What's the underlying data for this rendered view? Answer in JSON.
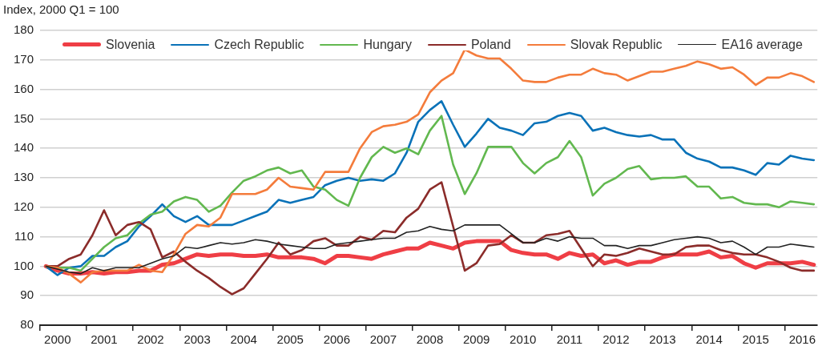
{
  "chart_data": {
    "type": "line",
    "ylabel": "Index, 2000 Q1 = 100",
    "x": [
      2000.125,
      2000.375,
      2000.625,
      2000.875,
      2001.125,
      2001.375,
      2001.625,
      2001.875,
      2002.125,
      2002.375,
      2002.625,
      2002.875,
      2003.125,
      2003.375,
      2003.625,
      2003.875,
      2004.125,
      2004.375,
      2004.625,
      2004.875,
      2005.125,
      2005.375,
      2005.625,
      2005.875,
      2006.125,
      2006.375,
      2006.625,
      2006.875,
      2007.125,
      2007.375,
      2007.625,
      2007.875,
      2008.125,
      2008.375,
      2008.625,
      2008.875,
      2009.125,
      2009.375,
      2009.625,
      2009.875,
      2010.125,
      2010.375,
      2010.625,
      2010.875,
      2011.125,
      2011.375,
      2011.625,
      2011.875,
      2012.125,
      2012.375,
      2012.625,
      2012.875,
      2013.125,
      2013.375,
      2013.625,
      2013.875,
      2014.125,
      2014.375,
      2014.625,
      2014.875,
      2015.125,
      2015.375,
      2015.625,
      2015.875,
      2016.125,
      2016.375,
      2016.625
    ],
    "series": [
      {
        "name": "Slovenia",
        "color": "#ef3e45",
        "values": [
          100,
          98.5,
          97.5,
          97.5,
          98,
          97.5,
          98,
          98,
          98.5,
          98.5,
          100.5,
          101,
          102.5,
          104,
          103.5,
          104,
          104,
          103.5,
          103.5,
          104,
          103,
          103,
          103,
          102.5,
          101,
          103.5,
          103.5,
          103,
          102.5,
          104,
          105,
          106,
          106,
          108,
          107,
          106,
          108,
          108.5,
          108.5,
          108.5,
          105.5,
          104.5,
          104,
          104,
          102.5,
          104.5,
          103.5,
          104,
          101,
          102,
          100.5,
          101.5,
          101.5,
          103,
          104,
          104,
          104,
          105,
          103,
          103.5,
          101,
          99.5,
          101,
          101,
          101,
          101.5,
          100.5
        ]
      },
      {
        "name": "Czech Republic",
        "color": "#0a72b8",
        "values": [
          100,
          97,
          99.5,
          100,
          103.5,
          103.5,
          106.5,
          108.5,
          113.5,
          117,
          121,
          117,
          115,
          117,
          114,
          114,
          114,
          115.5,
          117,
          118.5,
          122.5,
          121.5,
          122.5,
          123.5,
          127.5,
          129,
          130,
          129,
          129.5,
          129,
          131.5,
          138.5,
          149,
          153,
          156,
          148,
          140.5,
          145,
          150,
          147,
          146,
          144.5,
          148.5,
          149,
          151,
          152,
          151,
          146,
          147,
          145.5,
          144.5,
          144,
          144.5,
          143,
          143,
          138.5,
          136.5,
          135.5,
          133.5,
          133.5,
          132.5,
          131,
          135,
          134.5,
          137.5,
          136.5,
          136
        ]
      },
      {
        "name": "Hungary",
        "color": "#62b84f",
        "values": [
          100,
          99.5,
          99.5,
          98.5,
          102.5,
          106.5,
          109.5,
          110.5,
          114.5,
          117.5,
          118.5,
          122,
          123.5,
          122.5,
          118.5,
          120.5,
          125,
          129,
          130.5,
          132.5,
          133.5,
          131.5,
          132.5,
          127,
          126,
          122.5,
          120.5,
          130,
          137,
          140.5,
          138.5,
          140,
          138,
          146,
          151,
          134.5,
          124.5,
          131.5,
          140.5,
          140.5,
          140.5,
          135,
          131.5,
          135,
          137,
          142.5,
          137,
          124,
          128,
          130,
          133,
          134,
          129.5,
          130,
          130,
          130.5,
          127,
          127,
          123,
          123.5,
          121.5,
          121,
          121,
          120,
          122,
          121.5,
          121
        ]
      },
      {
        "name": "Poland",
        "color": "#8b2c2a",
        "values": [
          100,
          100,
          102.5,
          104,
          110.5,
          119,
          110.5,
          114,
          115,
          112.5,
          103,
          105,
          101.5,
          98.5,
          96,
          93,
          90.5,
          92.5,
          97.5,
          102.5,
          108,
          104,
          105.5,
          108.5,
          109.5,
          107,
          107,
          110,
          109,
          112,
          111.5,
          116.5,
          119.5,
          126,
          128.5,
          113.5,
          98.5,
          101,
          107,
          107.5,
          110.5,
          108,
          108,
          110.5,
          111,
          112,
          106,
          100,
          104,
          103.5,
          104.5,
          106,
          105,
          104,
          104,
          106.5,
          107,
          107,
          105.5,
          104.5,
          104,
          104,
          103,
          101.5,
          99.5,
          98.5,
          98.5
        ]
      },
      {
        "name": "Slovak Republic",
        "color": "#f47c3c",
        "values": [
          100,
          99.5,
          97.5,
          94.5,
          98,
          98.5,
          98.5,
          98.5,
          100.5,
          98.5,
          98,
          104,
          111,
          114,
          113.5,
          116.5,
          124.5,
          124.5,
          124.5,
          126,
          130,
          127,
          126.5,
          126,
          132,
          132,
          132,
          140,
          145.5,
          147.5,
          148,
          149,
          151.5,
          159,
          163,
          165.5,
          173.5,
          171.5,
          170.5,
          170.5,
          167,
          163,
          162.5,
          162.5,
          164,
          165,
          165,
          167,
          165.5,
          165,
          163,
          164.5,
          166,
          166,
          167,
          168,
          169.5,
          168.5,
          167,
          167.5,
          165,
          161.5,
          164,
          164,
          165.5,
          164.5,
          162.5
        ]
      },
      {
        "name": "EA16 average",
        "color": "#222222",
        "values": [
          100,
          99,
          98,
          97.5,
          99.5,
          98.5,
          99.5,
          99.5,
          99.5,
          101,
          102.5,
          103.5,
          106.5,
          106,
          107,
          108,
          107.5,
          108,
          109,
          108.5,
          107.5,
          107,
          106.5,
          106,
          106,
          107.5,
          108,
          108.5,
          109,
          109.5,
          109.5,
          111.5,
          112,
          113.5,
          112.5,
          112,
          114,
          114,
          114,
          114,
          111,
          108,
          108,
          109.5,
          108.5,
          110,
          109.5,
          109.5,
          107,
          107,
          106,
          107,
          107,
          108,
          109,
          109.5,
          110,
          109.5,
          108,
          108.5,
          106.5,
          104,
          106.5,
          106.5,
          107.5,
          107,
          106.5
        ]
      }
    ],
    "xlim": [
      2000,
      2016.7
    ],
    "xticks": [
      {
        "value": 2000,
        "label": null
      },
      {
        "value": 2000.375,
        "label": "2000"
      },
      {
        "value": 2001,
        "label": null
      },
      {
        "value": 2001.375,
        "label": "2001"
      },
      {
        "value": 2002,
        "label": null
      },
      {
        "value": 2002.375,
        "label": "2002"
      },
      {
        "value": 2003,
        "label": null
      },
      {
        "value": 2003.375,
        "label": "2003"
      },
      {
        "value": 2004,
        "label": null
      },
      {
        "value": 2004.375,
        "label": "2004"
      },
      {
        "value": 2005,
        "label": null
      },
      {
        "value": 2005.375,
        "label": "2005"
      },
      {
        "value": 2006,
        "label": null
      },
      {
        "value": 2006.375,
        "label": "2006"
      },
      {
        "value": 2007,
        "label": null
      },
      {
        "value": 2007.375,
        "label": "2007"
      },
      {
        "value": 2008,
        "label": null
      },
      {
        "value": 2008.375,
        "label": "2008"
      },
      {
        "value": 2009,
        "label": null
      },
      {
        "value": 2009.375,
        "label": "2009"
      },
      {
        "value": 2010,
        "label": null
      },
      {
        "value": 2010.375,
        "label": "2010"
      },
      {
        "value": 2011,
        "label": null
      },
      {
        "value": 2011.375,
        "label": "2011"
      },
      {
        "value": 2012,
        "label": null
      },
      {
        "value": 2012.375,
        "label": "2012"
      },
      {
        "value": 2013,
        "label": null
      },
      {
        "value": 2013.375,
        "label": "2013"
      },
      {
        "value": 2014,
        "label": null
      },
      {
        "value": 2014.375,
        "label": "2014"
      },
      {
        "value": 2015,
        "label": null
      },
      {
        "value": 2015.375,
        "label": "2015"
      },
      {
        "value": 2016,
        "label": null
      },
      {
        "value": 2016.375,
        "label": "2016"
      }
    ],
    "ylim": [
      80,
      180
    ],
    "yticks": [
      80,
      90,
      100,
      110,
      120,
      130,
      140,
      150,
      160,
      170,
      180
    ],
    "grid": "y",
    "legend": "top"
  }
}
